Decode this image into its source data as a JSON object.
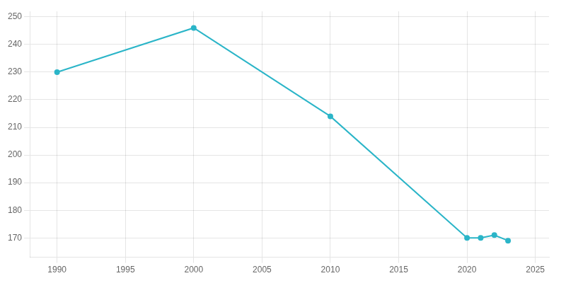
{
  "chart_data": {
    "type": "line",
    "x": [
      1990,
      2000,
      2010,
      2020,
      2021,
      2022,
      2023
    ],
    "values": [
      230,
      246,
      214,
      170,
      170,
      171,
      169
    ],
    "color": "#2bb5c8",
    "marker": "circle",
    "xlim": [
      1988,
      2026
    ],
    "xticks": [
      1990,
      1995,
      2000,
      2005,
      2010,
      2015,
      2020,
      2025
    ],
    "ylim": [
      163,
      252
    ],
    "yticks": [
      170,
      180,
      190,
      200,
      210,
      220,
      230,
      240,
      250
    ],
    "grid": true
  }
}
